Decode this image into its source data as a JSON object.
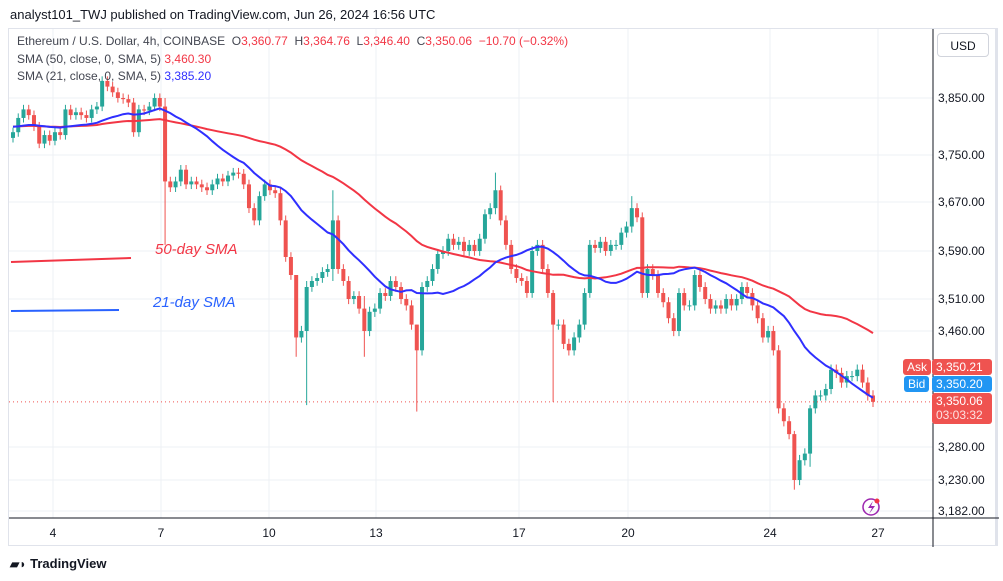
{
  "header": {
    "published": "analyst101_TWJ published on TradingView.com, Jun 26, 2024 16:56 UTC"
  },
  "legend": {
    "symbol": "Ethereum / U.S. Dollar, 4h, COINBASE",
    "o_label": "O",
    "o": "3,360.77",
    "h_label": "H",
    "h": "3,364.76",
    "l_label": "L",
    "l": "3,346.40",
    "c_label": "C",
    "c": "3,350.06",
    "change": "−10.70 (−0.32%)",
    "sma50_label": "SMA (50, close, 0, SMA, 5)",
    "sma50_value": "3,460.30",
    "sma21_label": "SMA (21, close, 0, SMA, 5)",
    "sma21_value": "3,385.20"
  },
  "currency_button": "USD",
  "price_tags": {
    "ask_label": "Ask",
    "ask": "3,350.21",
    "bid_label": "Bid",
    "bid": "3,350.20",
    "last": "3,350.06",
    "countdown": "03:03:32"
  },
  "annotations": {
    "sma50": "50-day SMA",
    "sma21": "21-day SMA"
  },
  "footer": {
    "logo": "TradingView"
  },
  "colors": {
    "up": "#26a69a",
    "down": "#ef5350",
    "sma50": "#f23645",
    "sma21": "#2f2fff",
    "ask": "#ef5350",
    "bid": "#2196f3"
  },
  "icons": {
    "lightning": "lightning-icon"
  },
  "chart_data": {
    "type": "candlestick",
    "interval": "4h",
    "y_ticks": [
      3850,
      3750,
      3670,
      3590,
      3510,
      3460,
      3280,
      3230,
      3182
    ],
    "y_tick_labels": [
      "3,850.00",
      "3,750.00",
      "3,670.00",
      "3,590.00",
      "3,510.00",
      "3,460.00",
      "3,280.00",
      "3,230.00",
      "3,182.00"
    ],
    "x_tick_labels": [
      "4",
      "7",
      "10",
      "13",
      "17",
      "20",
      "24",
      "27"
    ],
    "grid": true,
    "series": [
      {
        "name": "SMA (50, close, 0, SMA, 5)",
        "type": "line"
      },
      {
        "name": "SMA (21, close, 0, SMA, 5)",
        "type": "line"
      }
    ],
    "closes": [
      3790,
      3815,
      3830,
      3820,
      3800,
      3770,
      3785,
      3775,
      3790,
      3785,
      3830,
      3820,
      3825,
      3820,
      3815,
      3830,
      3835,
      3880,
      3870,
      3860,
      3850,
      3848,
      3842,
      3790,
      3830,
      3828,
      3835,
      3850,
      3835,
      3705,
      3695,
      3705,
      3725,
      3700,
      3705,
      3700,
      3695,
      3690,
      3700,
      3710,
      3705,
      3715,
      3720,
      3718,
      3700,
      3660,
      3640,
      3680,
      3700,
      3690,
      3685,
      3640,
      3580,
      3550,
      3450,
      3460,
      3530,
      3540,
      3545,
      3555,
      3560,
      3640,
      3560,
      3540,
      3510,
      3515,
      3495,
      3460,
      3490,
      3495,
      3520,
      3515,
      3540,
      3530,
      3510,
      3500,
      3470,
      3430,
      3530,
      3540,
      3560,
      3585,
      3590,
      3610,
      3600,
      3605,
      3590,
      3600,
      3590,
      3610,
      3650,
      3660,
      3690,
      3640,
      3600,
      3560,
      3545,
      3540,
      3520,
      3590,
      3600,
      3560,
      3520,
      3470,
      3470,
      3440,
      3430,
      3450,
      3470,
      3520,
      3600,
      3595,
      3605,
      3590,
      3600,
      3600,
      3620,
      3630,
      3660,
      3645,
      3520,
      3560,
      3550,
      3520,
      3505,
      3480,
      3460,
      3520,
      3500,
      3500,
      3550,
      3530,
      3510,
      3495,
      3500,
      3495,
      3510,
      3500,
      3510,
      3530,
      3520,
      3500,
      3480,
      3450,
      3460,
      3430,
      3340,
      3320,
      3300,
      3230,
      3260,
      3270,
      3340,
      3360,
      3360,
      3370,
      3400,
      3395,
      3380,
      3390,
      3390,
      3400,
      3380,
      3360,
      3350.06
    ],
    "first_open": 3780,
    "notable_wicks": {
      "29": [
        3850,
        3600
      ],
      "54": [
        3470,
        3420
      ],
      "56": [
        3540,
        3345
      ],
      "61": [
        3690,
        3540
      ],
      "67": [
        3515,
        3420
      ],
      "77": [
        3470,
        3335
      ],
      "92": [
        3720,
        3650
      ],
      "103": [
        3525,
        3350
      ],
      "118": [
        3680,
        3620
      ],
      "149": [
        3305,
        3215
      ],
      "152": [
        3345,
        3250
      ]
    }
  }
}
